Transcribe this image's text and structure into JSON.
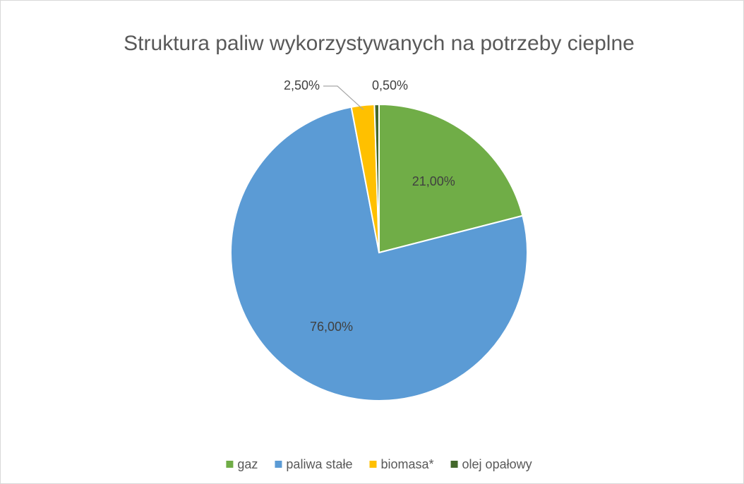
{
  "chart_data": {
    "type": "pie",
    "title": "Struktura paliw wykorzystywanych na potrzeby cieplne",
    "categories": [
      "gaz",
      "paliwa stałe",
      "biomasa*",
      "olej opałowy"
    ],
    "values": [
      21,
      76,
      2.5,
      0.5
    ],
    "value_labels": [
      "21,00%",
      "76,00%",
      "2,50%",
      "0,50%"
    ],
    "colors": [
      "#70ad47",
      "#5b9bd5",
      "#ffc000",
      "#43682b"
    ],
    "legend": "bottom"
  }
}
